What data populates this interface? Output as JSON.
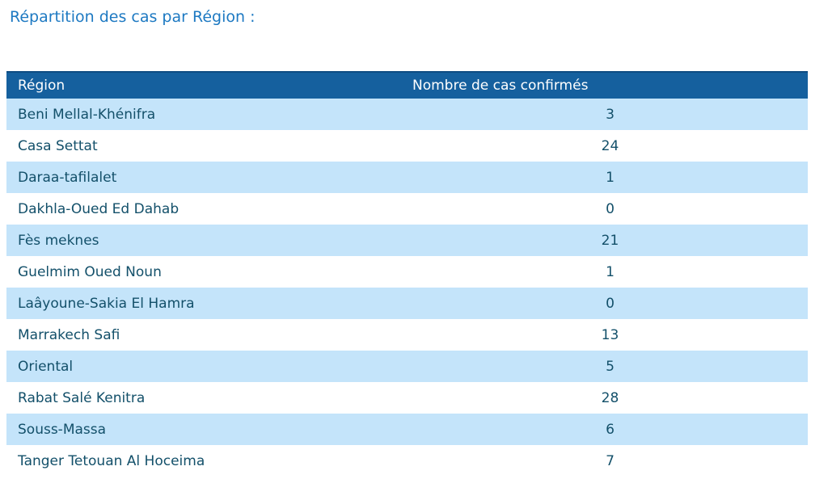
{
  "page": {
    "title": "Répartition des cas par Région :"
  },
  "table": {
    "headers": [
      "Région",
      "Nombre de cas confirmés"
    ],
    "rows": [
      {
        "region": "Beni Mellal-Khénifra",
        "value": "3"
      },
      {
        "region": "Casa Settat",
        "value": "24"
      },
      {
        "region": "Daraa-tafilalet",
        "value": "1"
      },
      {
        "region": "Dakhla-Oued Ed Dahab",
        "value": "0"
      },
      {
        "region": "Fès meknes",
        "value": "21"
      },
      {
        "region": "Guelmim Oued Noun",
        "value": "1"
      },
      {
        "region": "Laâyoune-Sakia El Hamra",
        "value": "0"
      },
      {
        "region": "Marrakech Safi",
        "value": "13"
      },
      {
        "region": "Oriental",
        "value": "5"
      },
      {
        "region": "Rabat Salé Kenitra",
        "value": "28"
      },
      {
        "region": "Souss-Massa",
        "value": "6"
      },
      {
        "region": "Tanger Tetouan Al Hoceima",
        "value": "7"
      }
    ]
  },
  "colors": {
    "title_text": "#1D79C2",
    "header_bg": "#15609E",
    "header_top_border": "#0E4C82",
    "header_text": "#FFFFFF",
    "row_alt_bg": "#C4E4FA",
    "row_bg": "#FFFFFF",
    "row_text": "#13506A"
  },
  "chart_data": {
    "type": "table",
    "title": "Répartition des cas par Région :",
    "columns": [
      "Région",
      "Nombre de cas confirmés"
    ],
    "categories": [
      "Beni Mellal-Khénifra",
      "Casa Settat",
      "Daraa-tafilalet",
      "Dakhla-Oued Ed Dahab",
      "Fès meknes",
      "Guelmim Oued Noun",
      "Laâyoune-Sakia El Hamra",
      "Marrakech Safi",
      "Oriental",
      "Rabat Salé Kenitra",
      "Souss-Massa",
      "Tanger Tetouan Al Hoceima"
    ],
    "values": [
      3,
      24,
      1,
      0,
      21,
      1,
      0,
      13,
      5,
      28,
      6,
      7
    ]
  }
}
